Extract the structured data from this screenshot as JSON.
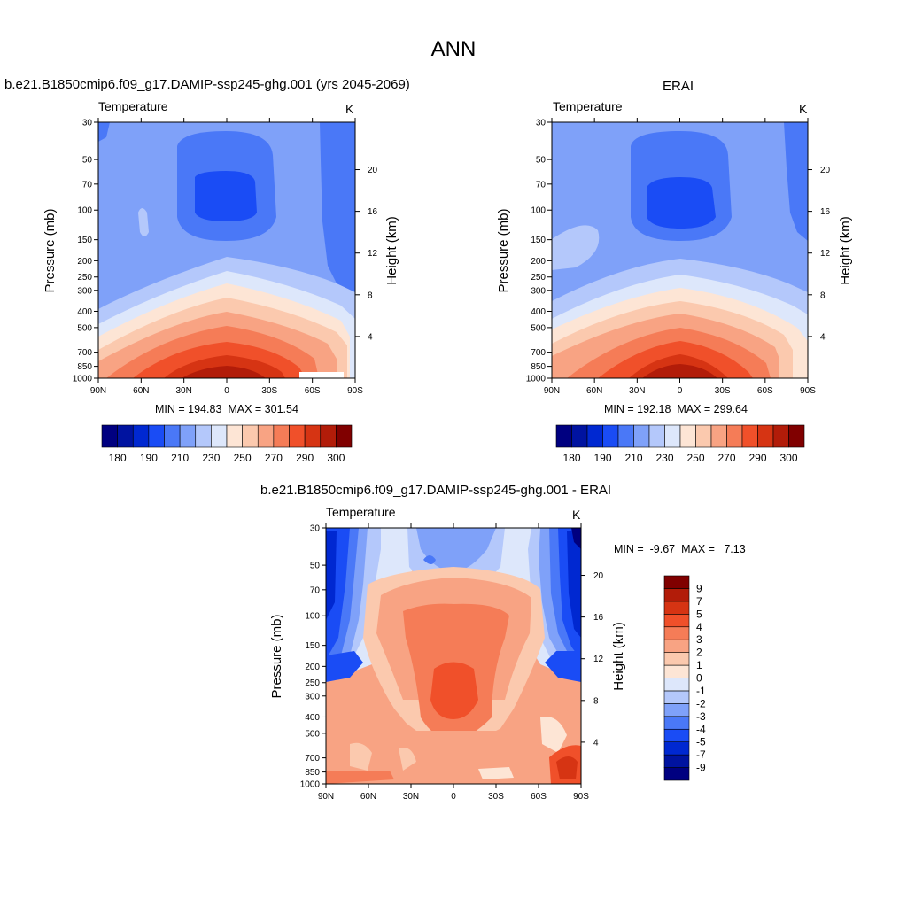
{
  "page": {
    "title": "ANN"
  },
  "panels": {
    "top_left": {
      "case_title": "b.e21.B1850cmip6.f09_g17.DAMIP-ssp245-ghg.001 (yrs 2045-2069)",
      "variable": "Temperature",
      "units": "K",
      "stats": "MIN = 194.83  MAX = 301.54"
    },
    "top_right": {
      "case_title": "ERAI",
      "variable": "Temperature",
      "units": "K",
      "stats": "MIN = 192.18  MAX = 299.64"
    },
    "bottom": {
      "case_title": "b.e21.B1850cmip6.f09_g17.DAMIP-ssp245-ghg.001 - ERAI",
      "variable": "Temperature",
      "units": "K",
      "stats": "MIN =  -9.67  MAX =   7.13"
    }
  },
  "axes": {
    "ylabel_left": "Pressure (mb)",
    "ylabel_right": "Height (km)",
    "pressure_ticks": [
      "30",
      "50",
      "70",
      "100",
      "150",
      "200",
      "250",
      "300",
      "400",
      "500",
      "700",
      "850",
      "1000"
    ],
    "height_ticks": [
      "20",
      "16",
      "12",
      "8",
      "4"
    ],
    "lat_ticks": [
      "90N",
      "60N",
      "30N",
      "0",
      "30S",
      "60S",
      "90S"
    ]
  },
  "colorbars": {
    "abs_labels": [
      "180",
      "190",
      "210",
      "230",
      "250",
      "270",
      "290",
      "300"
    ],
    "diff_labels": [
      "9",
      "7",
      "5",
      "4",
      "3",
      "2",
      "1",
      "0",
      "-1",
      "-2",
      "-3",
      "-4",
      "-5",
      "-7",
      "-9"
    ],
    "abs_colors": [
      "#000080",
      "#0013a0",
      "#0028d1",
      "#1a4cf5",
      "#4a78f7",
      "#7fa1f9",
      "#b4c8fb",
      "#dde7fb",
      "#fde5d5",
      "#fbc9ae",
      "#f8a383",
      "#f57c57",
      "#f0502a",
      "#d63413",
      "#b21c09",
      "#800000"
    ],
    "diff_colors_bottom_to_top": [
      "#000080",
      "#0013a0",
      "#0028d1",
      "#1a4cf5",
      "#4a78f7",
      "#7fa1f9",
      "#b4c8fb",
      "#dde7fb",
      "#fde5d5",
      "#fbc9ae",
      "#f8a383",
      "#f57c57",
      "#f0502a",
      "#d63413",
      "#b21c09",
      "#800000"
    ]
  },
  "chart_data": [
    {
      "type": "heatmap",
      "title": "b.e21.B1850cmip6.f09_g17.DAMIP-ssp245-ghg.001 (yrs 2045-2069)",
      "variable": "Temperature",
      "units": "K",
      "xlabel": "",
      "ylabel": "Pressure (mb)",
      "ylabel_right": "Height (km)",
      "x": [
        "90N",
        "60N",
        "30N",
        "0",
        "30S",
        "60S",
        "90S"
      ],
      "pressure_levels": [
        30,
        50,
        70,
        100,
        150,
        200,
        250,
        300,
        400,
        500,
        700,
        850,
        1000
      ],
      "min": 194.83,
      "max": 301.54,
      "colorbar_levels": [
        180,
        190,
        210,
        230,
        250,
        270,
        290,
        300
      ]
    },
    {
      "type": "heatmap",
      "title": "ERAI",
      "variable": "Temperature",
      "units": "K",
      "ylabel": "Pressure (mb)",
      "ylabel_right": "Height (km)",
      "x": [
        "90N",
        "60N",
        "30N",
        "0",
        "30S",
        "60S",
        "90S"
      ],
      "pressure_levels": [
        30,
        50,
        70,
        100,
        150,
        200,
        250,
        300,
        400,
        500,
        700,
        850,
        1000
      ],
      "min": 192.18,
      "max": 299.64,
      "colorbar_levels": [
        180,
        190,
        210,
        230,
        250,
        270,
        290,
        300
      ]
    },
    {
      "type": "heatmap",
      "title": "b.e21.B1850cmip6.f09_g17.DAMIP-ssp245-ghg.001 - ERAI",
      "variable": "Temperature",
      "units": "K",
      "ylabel": "Pressure (mb)",
      "ylabel_right": "Height (km)",
      "x": [
        "90N",
        "60N",
        "30N",
        "0",
        "30S",
        "60S",
        "90S"
      ],
      "pressure_levels": [
        30,
        50,
        70,
        100,
        150,
        200,
        250,
        300,
        400,
        500,
        700,
        850,
        1000
      ],
      "min": -9.67,
      "max": 7.13,
      "colorbar_levels": [
        9,
        7,
        5,
        4,
        3,
        2,
        1,
        0,
        -1,
        -2,
        -3,
        -4,
        -5,
        -7,
        -9
      ]
    }
  ]
}
